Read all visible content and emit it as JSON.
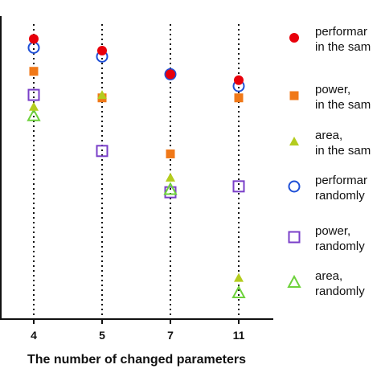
{
  "chart_data": {
    "type": "scatter",
    "xlabel": "The number of changed parameters",
    "ylabel": "",
    "categories": [
      "4",
      "5",
      "7",
      "11"
    ],
    "grid": "dotted vertical lines at each category",
    "legend_position": "right",
    "colors": {
      "red": "#e8000b",
      "orange": "#f07818",
      "yellow_green": "#b4cc1e",
      "blue": "#1e4fd6",
      "purple": "#7a3fc8",
      "light_green": "#6ed23c"
    },
    "legend_labels": [
      [
        "performar",
        "in the sam"
      ],
      [
        "power,",
        "in the sam"
      ],
      [
        "area,",
        "in the sam"
      ],
      [
        "performar",
        "randomly"
      ],
      [
        "power,",
        "randomly"
      ],
      [
        "area,",
        "randomly"
      ]
    ],
    "series": [
      {
        "marker": "filled-circle",
        "color": "red",
        "values": [
          0.95,
          0.91,
          0.83,
          0.81
        ]
      },
      {
        "marker": "filled-square",
        "color": "orange",
        "values": [
          0.84,
          0.75,
          0.56,
          0.75
        ]
      },
      {
        "marker": "filled-triangle",
        "color": "yellow_green",
        "values": [
          0.72,
          0.76,
          0.48,
          0.14
        ]
      },
      {
        "marker": "open-circle",
        "color": "blue",
        "values": [
          0.92,
          0.89,
          0.83,
          0.79
        ]
      },
      {
        "marker": "open-square",
        "color": "purple",
        "values": [
          0.76,
          0.57,
          0.43,
          0.45
        ]
      },
      {
        "marker": "open-triangle",
        "color": "light_green",
        "values": [
          0.69,
          null,
          0.44,
          0.09
        ]
      }
    ]
  }
}
